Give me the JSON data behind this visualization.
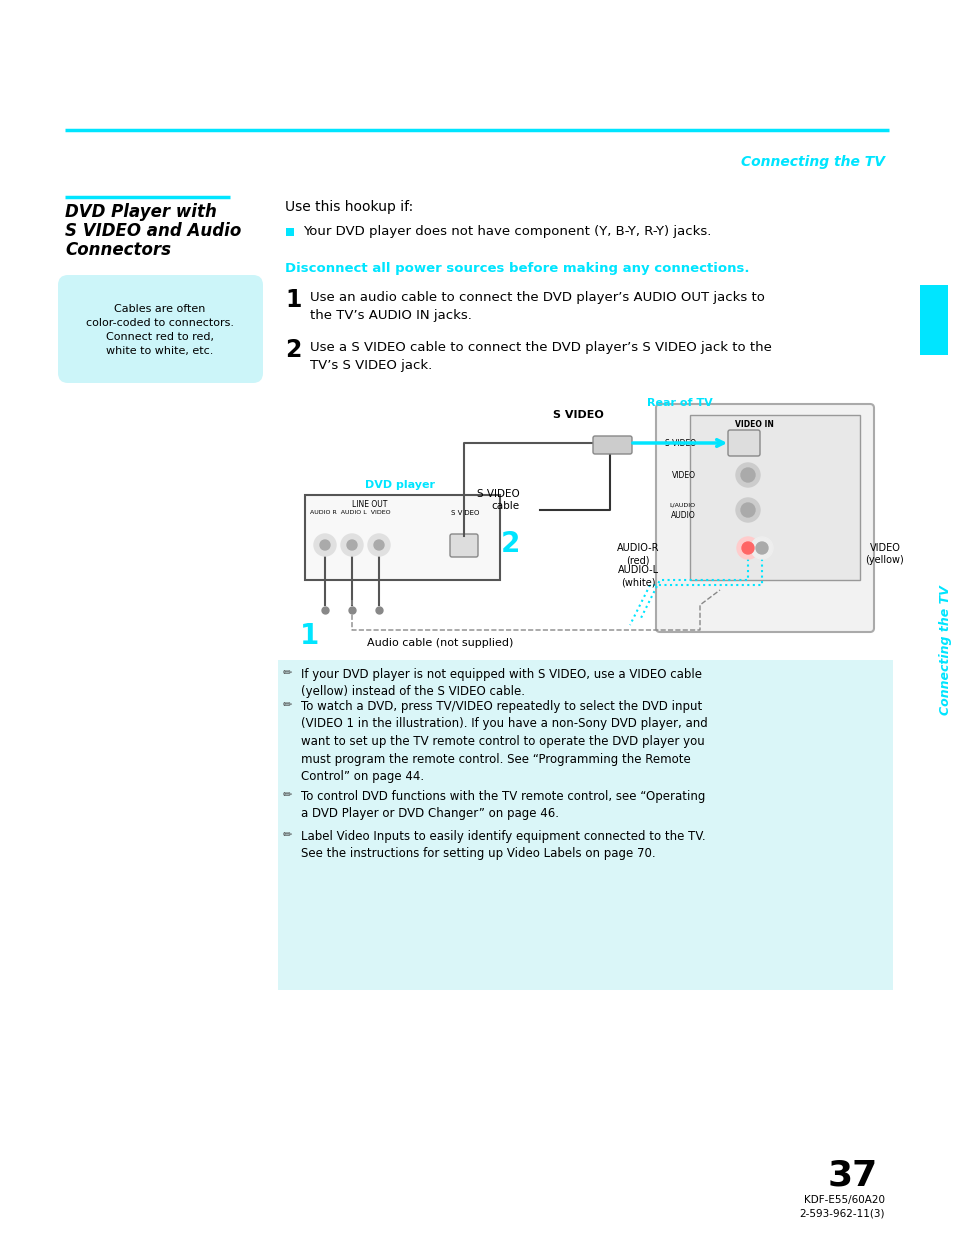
{
  "page_bg": "#ffffff",
  "cyan_color": "#00e5ff",
  "light_cyan_bg": "#cff6f8",
  "text_color": "#000000",
  "header_text": "Connecting the TV",
  "sidebar_label": "Connecting the TV",
  "section_title_line1": "DVD Player with",
  "section_title_line2": "S VIDEO and Audio",
  "section_title_line3": "Connectors",
  "bubble_text": "Cables are often\ncolor-coded to connectors.\nConnect red to red,\nwhite to white, etc.",
  "hookup_label": "Use this hookup if:",
  "bullet_text": "Your DVD player does not have component (Y, B-Y, R-Y) jacks.",
  "warning_text": "Disconnect all power sources before making any connections.",
  "step1_num": "1",
  "step1_text": "Use an audio cable to connect the DVD player’s AUDIO OUT jacks to\nthe TV’s AUDIO IN jacks.",
  "step2_num": "2",
  "step2_text": "Use a S VIDEO cable to connect the DVD player’s S VIDEO jack to the\nTV’s S VIDEO jack.",
  "label_rear": "Rear of TV",
  "label_svideo": "S VIDEO",
  "label_svideo_cable": "S VIDEO\ncable",
  "label_dvd": "DVD player",
  "label_audio_cable": "Audio cable (not supplied)",
  "label_num1": "1",
  "label_num2": "2",
  "label_audiор": "AUDIO-R\n(red)",
  "label_audiol": "AUDIO-L\n(white)",
  "label_video": "VIDEO\n(yellow)",
  "note1": "If your DVD player is not equipped with S VIDEO, use a VIDEO cable\n(yellow) instead of the S VIDEO cable.",
  "note2": "To watch a DVD, press TV/VIDEO repeatedly to select the DVD input\n(VIDEO 1 in the illustration). If you have a non-Sony DVD player, and\nwant to set up the TV remote control to operate the DVD player you\nmust program the remote control. See “Programming the Remote\nControl” on page 44.",
  "note3": "To control DVD functions with the TV remote control, see “Operating\na DVD Player or DVD Changer” on page 46.",
  "note4": "Label Video Inputs to easily identify equipment connected to the TV.\nSee the instructions for setting up Video Labels on page 70.",
  "page_number": "37",
  "footer_model": "KDF-E55/60A20",
  "footer_code": "2-593-962-11(3)"
}
